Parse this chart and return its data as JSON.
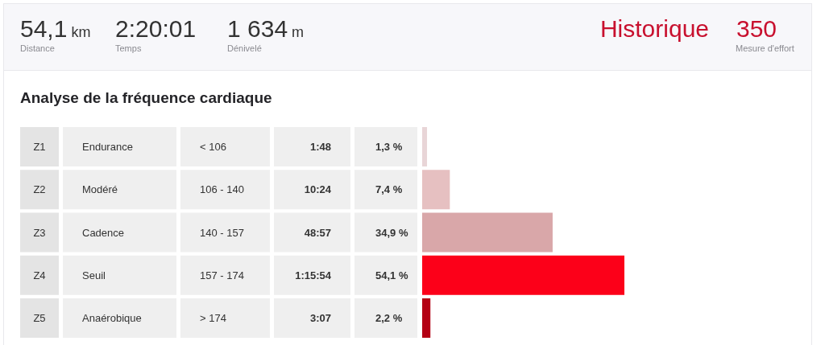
{
  "chart_data": [
    {
      "type": "other",
      "annotations": [
        "54,1 km",
        "Distance",
        "2:20:01",
        "Temps",
        "1 634 m",
        "Dénivelé",
        "Historique",
        "350",
        "Mesure d'effort"
      ]
    },
    {
      "type": "bar",
      "orientation": "horizontal",
      "title": "Analyse de la fréquence cardiaque",
      "categories": [
        "Z1",
        "Z2",
        "Z3",
        "Z4",
        "Z5"
      ],
      "values": [
        1.3,
        7.4,
        34.9,
        54.1,
        2.2
      ],
      "colors": [
        "#e8d5d7",
        "#e6c0c1",
        "#d9a7a9",
        "#fc0019",
        "#b40014"
      ],
      "value_labels": [
        "1,3 %",
        "7,4 %",
        "34,9 %",
        "54,1 %",
        "2,2 %"
      ],
      "tick_labels": "y",
      "annotations": [
        "Endurance",
        "< 106",
        "1:48",
        "Modéré",
        "106 - 140",
        "10:24",
        "Cadence",
        "140 - 157",
        "48:57",
        "Seuil",
        "157 - 174",
        "1:15:54",
        "Anaérobique",
        "> 174",
        "3:07"
      ]
    }
  ]
}
